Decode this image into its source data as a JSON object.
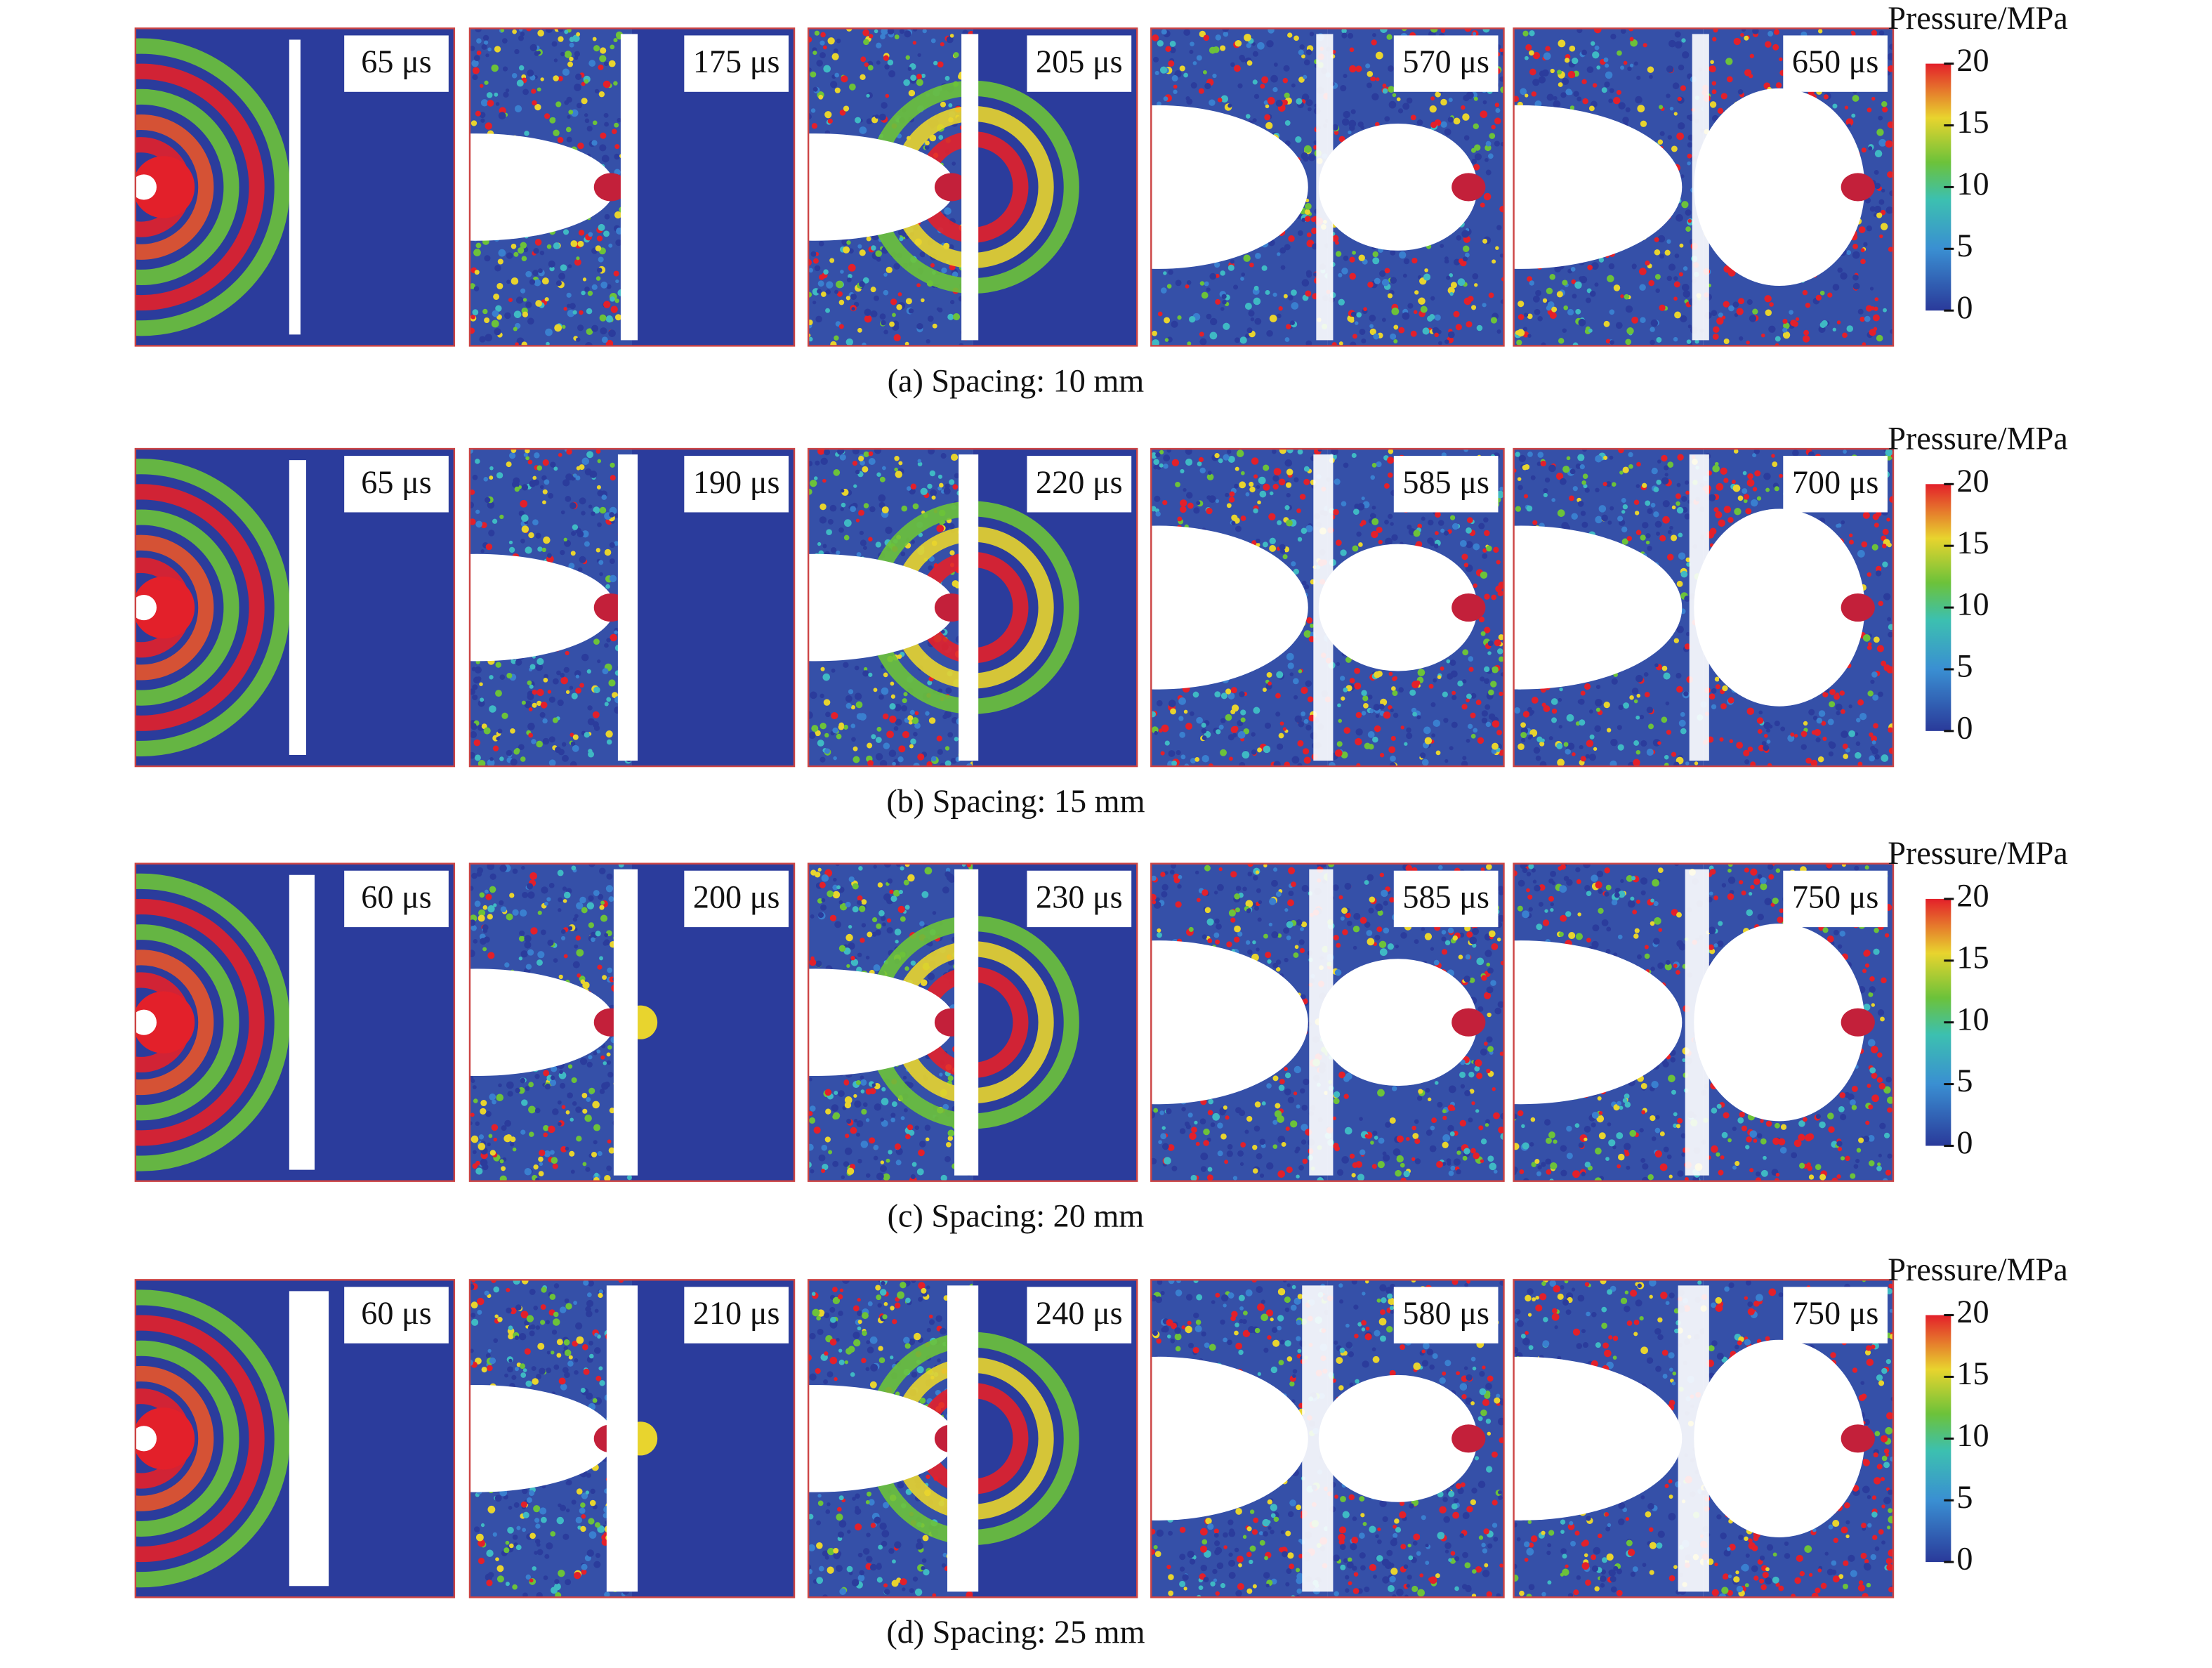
{
  "rows": [
    {
      "caption": "(a) Spacing: 10 mm",
      "times": [
        "65 μs",
        "175 μs",
        "205 μs",
        "570 μs",
        "650 μs"
      ]
    },
    {
      "caption": "(b) Spacing: 15 mm",
      "times": [
        "65 μs",
        "190 μs",
        "220 μs",
        "585 μs",
        "700 μs"
      ]
    },
    {
      "caption": "(c) Spacing: 20 mm",
      "times": [
        "60 μs",
        "200 μs",
        "230 μs",
        "585 μs",
        "750 μs"
      ]
    },
    {
      "caption": "(d) Spacing: 25 mm",
      "times": [
        "60 μs",
        "210 μs",
        "240 μs",
        "580 μs",
        "750 μs"
      ]
    }
  ],
  "colorbar": {
    "title": "Pressure/MPa",
    "ticks": [
      0,
      5,
      10,
      15,
      20
    ]
  }
}
